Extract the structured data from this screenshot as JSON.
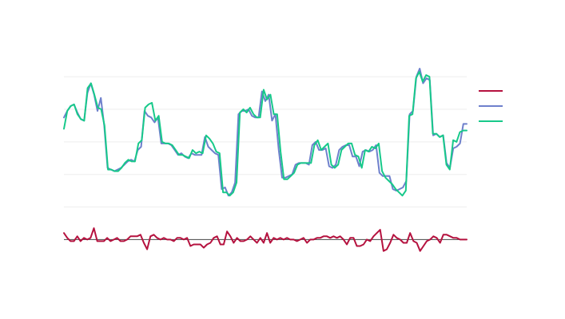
{
  "chart_data": {
    "type": "line",
    "title": "",
    "xlabel": "",
    "ylabel": "",
    "ylim": [
      -0.75,
      5.25
    ],
    "grid": true,
    "legend_position": "right",
    "zero_line": true,
    "series": [
      {
        "color": "#b5123f",
        "values": [
          0.2,
          0.05,
          -0.05,
          -0.05,
          0.1,
          -0.05,
          0.05,
          0.0,
          0.05,
          0.35,
          -0.05,
          -0.05,
          -0.05,
          0.05,
          -0.05,
          0.0,
          0.05,
          -0.05,
          -0.05,
          0.0,
          0.1,
          0.1,
          0.1,
          0.15,
          -0.1,
          -0.3,
          0.1,
          0.15,
          0.05,
          0.0,
          0.05,
          0.0,
          0.0,
          -0.05,
          0.05,
          0.05,
          0.0,
          0.05,
          -0.2,
          -0.15,
          -0.15,
          -0.15,
          -0.25,
          -0.15,
          -0.1,
          0.05,
          0.1,
          -0.15,
          -0.15,
          0.25,
          0.1,
          -0.1,
          0.05,
          -0.05,
          -0.05,
          0.0,
          0.1,
          0.0,
          -0.1,
          0.05,
          -0.1,
          0.2,
          -0.1,
          0.05,
          0.0,
          0.05,
          0.0,
          0.05,
          0.0,
          0.0,
          -0.05,
          0.0,
          0.05,
          -0.1,
          0.0,
          0.0,
          0.05,
          0.05,
          0.1,
          0.1,
          0.05,
          0.1,
          0.05,
          0.1,
          0.0,
          -0.15,
          0.05,
          0.05,
          -0.2,
          -0.2,
          -0.15,
          0.0,
          -0.05,
          0.1,
          0.2,
          0.3,
          -0.35,
          -0.3,
          -0.1,
          0.15,
          0.05,
          0.0,
          -0.1,
          -0.1,
          0.2,
          -0.05,
          -0.1,
          -0.35,
          -0.2,
          -0.05,
          0.0,
          0.1,
          0.05,
          -0.1,
          0.15,
          0.15,
          0.1,
          0.05,
          0.05,
          0.0,
          0.0,
          0.0
        ]
      },
      {
        "color": "#6e80cc",
        "values": [
          3.75,
          3.95,
          4.1,
          4.15,
          3.9,
          3.7,
          3.65,
          4.5,
          4.8,
          4.45,
          3.95,
          4.35,
          3.5,
          2.2,
          2.15,
          2.1,
          2.15,
          2.2,
          2.3,
          2.4,
          2.45,
          2.4,
          2.75,
          2.85,
          3.95,
          3.8,
          3.75,
          3.6,
          3.75,
          2.95,
          2.95,
          2.95,
          2.9,
          2.75,
          2.6,
          2.65,
          2.55,
          2.5,
          2.65,
          2.6,
          2.6,
          2.6,
          3.15,
          2.85,
          2.75,
          2.65,
          2.6,
          1.55,
          1.6,
          1.35,
          1.45,
          1.75,
          3.85,
          3.95,
          3.95,
          4.0,
          3.8,
          3.75,
          3.75,
          4.55,
          4.25,
          4.45,
          3.65,
          3.85,
          2.75,
          1.9,
          1.9,
          1.95,
          2.0,
          2.3,
          2.35,
          2.35,
          2.35,
          2.3,
          2.9,
          3.0,
          2.75,
          2.75,
          2.8,
          2.25,
          2.2,
          2.3,
          2.75,
          2.85,
          2.9,
          2.9,
          2.55,
          2.55,
          2.25,
          2.7,
          2.75,
          2.7,
          2.75,
          2.9,
          2.05,
          1.95,
          1.95,
          1.95,
          1.55,
          1.5,
          1.55,
          1.6,
          1.8,
          3.85,
          3.95,
          5.0,
          5.25,
          4.8,
          4.95,
          4.9,
          3.2,
          3.25,
          3.15,
          3.2,
          2.35,
          2.2,
          2.8,
          2.85,
          2.95,
          3.55,
          3.55
        ]
      },
      {
        "color": "#17c98a",
        "values": [
          3.4,
          3.95,
          4.1,
          4.15,
          3.85,
          3.7,
          3.65,
          4.65,
          4.8,
          4.45,
          4.05,
          4.0,
          3.5,
          2.15,
          2.15,
          2.1,
          2.1,
          2.2,
          2.35,
          2.45,
          2.4,
          2.4,
          2.95,
          3.05,
          4.05,
          4.15,
          4.2,
          3.65,
          3.8,
          3.0,
          2.95,
          2.95,
          2.9,
          2.75,
          2.6,
          2.6,
          2.55,
          2.5,
          2.75,
          2.65,
          2.7,
          2.65,
          3.2,
          3.1,
          2.95,
          2.7,
          2.65,
          1.45,
          1.45,
          1.35,
          1.45,
          1.75,
          3.9,
          4.0,
          3.9,
          4.05,
          3.85,
          3.75,
          3.75,
          4.6,
          4.3,
          4.45,
          3.85,
          3.85,
          2.7,
          1.85,
          1.85,
          1.95,
          2.05,
          2.3,
          2.35,
          2.35,
          2.35,
          2.35,
          2.9,
          3.05,
          2.75,
          2.85,
          2.95,
          2.3,
          2.2,
          2.3,
          2.75,
          2.85,
          2.95,
          2.95,
          2.6,
          2.55,
          2.2,
          2.75,
          2.7,
          2.85,
          2.8,
          2.95,
          2.1,
          1.9,
          1.8,
          1.7,
          1.55,
          1.45,
          1.35,
          1.5,
          3.8,
          3.85,
          4.95,
          5.15,
          4.85,
          5.05,
          5.0,
          3.25,
          3.25,
          3.15,
          3.2,
          2.3,
          2.15,
          3.05,
          3.0,
          3.3,
          3.35,
          3.35
        ]
      }
    ]
  }
}
